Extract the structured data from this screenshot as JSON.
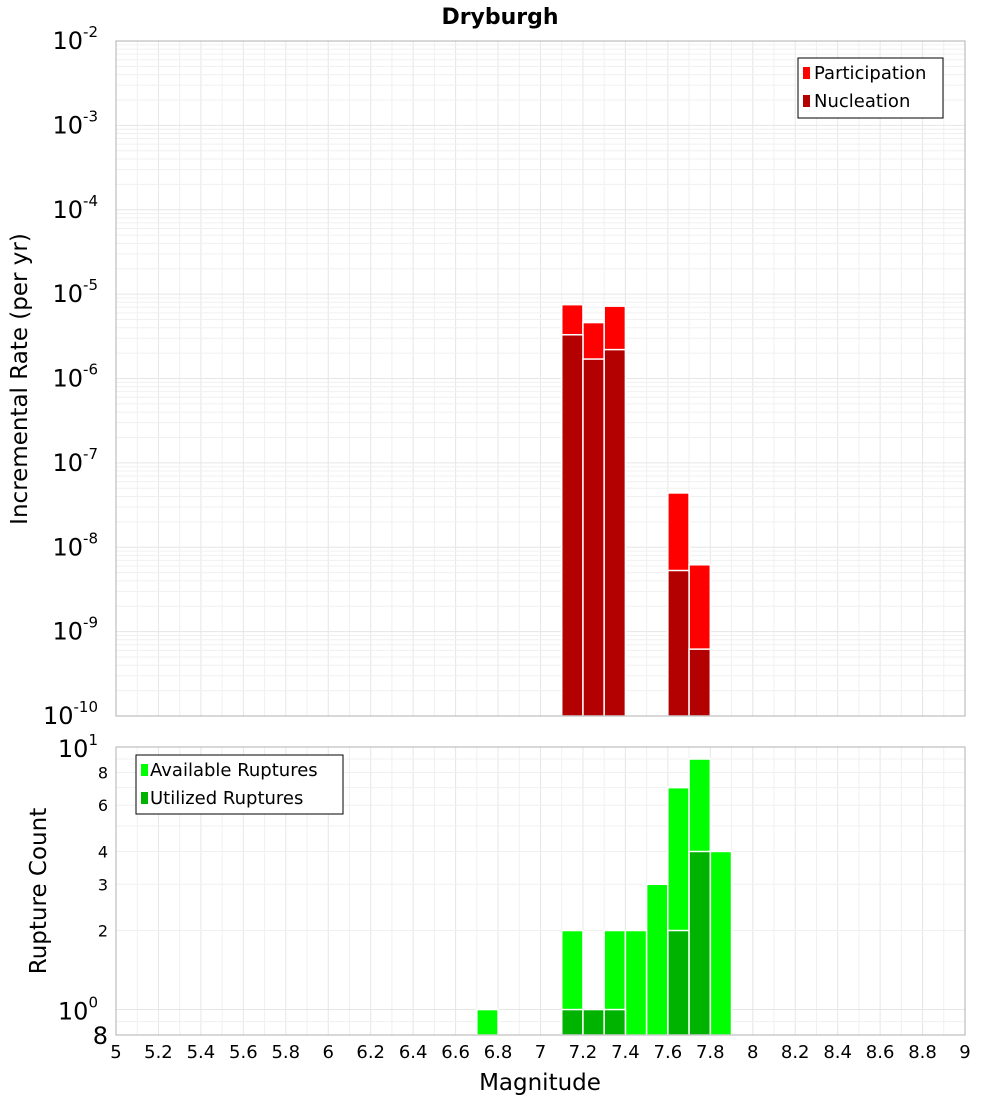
{
  "chart_data": [
    {
      "type": "bar",
      "title": "Dryburgh",
      "ylabel": "Incremental Rate (per yr)",
      "xlabel": "",
      "yscale": "log",
      "ylim": [
        1e-10,
        0.01
      ],
      "xlim": [
        5,
        9
      ],
      "bin_width": 0.1,
      "legend": "top-right",
      "grid": true,
      "series": [
        {
          "name": "Participation",
          "color": "#ff0000",
          "x": [
            7.15,
            7.25,
            7.35,
            7.65,
            7.75
          ],
          "values": [
            7.5e-06,
            4.6e-06,
            7.2e-06,
            4.4e-08,
            6.2e-09
          ]
        },
        {
          "name": "Nucleation",
          "color": "#b30000",
          "x": [
            7.15,
            7.25,
            7.35,
            7.65,
            7.75
          ],
          "values": [
            3.3e-06,
            1.7e-06,
            2.2e-06,
            5.3e-09,
            6.2e-10
          ]
        }
      ]
    },
    {
      "type": "bar",
      "ylabel": "Rupture Count",
      "xlabel": "Magnitude",
      "yscale": "log",
      "ylim": [
        0.8,
        10
      ],
      "xlim": [
        5,
        9
      ],
      "bin_width": 0.1,
      "legend": "top-left",
      "grid": true,
      "series": [
        {
          "name": "Available Ruptures",
          "color": "#00ff00",
          "x": [
            6.75,
            7.15,
            7.25,
            7.35,
            7.45,
            7.55,
            7.65,
            7.75,
            7.85
          ],
          "values": [
            1,
            2,
            1,
            2,
            2,
            3,
            7,
            9,
            4
          ]
        },
        {
          "name": "Utilized Ruptures",
          "color": "#00b300",
          "x": [
            7.15,
            7.25,
            7.35,
            7.65,
            7.75
          ],
          "values": [
            1,
            1,
            1,
            2,
            4
          ]
        }
      ]
    }
  ],
  "ticks": {
    "x": [
      "5",
      "5.2",
      "5.4",
      "5.6",
      "5.8",
      "6",
      "6.2",
      "6.4",
      "6.6",
      "6.8",
      "7",
      "7.2",
      "7.4",
      "7.6",
      "7.8",
      "8",
      "8.2",
      "8.4",
      "8.6",
      "8.8",
      "9"
    ],
    "top_y_exponents": [
      "-2",
      "-3",
      "-4",
      "-5",
      "-6",
      "-7",
      "-8",
      "-9",
      "-10"
    ],
    "top_y_base": "10",
    "bottom_y_major": [
      {
        "base": "10",
        "sup": "1",
        "value": 10
      },
      {
        "base": "10",
        "sup": "0",
        "value": 1
      }
    ],
    "bottom_y_minor": [
      {
        "label": "8",
        "value": 8
      },
      {
        "label": "6",
        "value": 6
      },
      {
        "label": "4",
        "value": 4
      },
      {
        "label": "3",
        "value": 3
      },
      {
        "label": "2",
        "value": 2
      },
      {
        "label": "8",
        "value": 0.8
      }
    ]
  }
}
